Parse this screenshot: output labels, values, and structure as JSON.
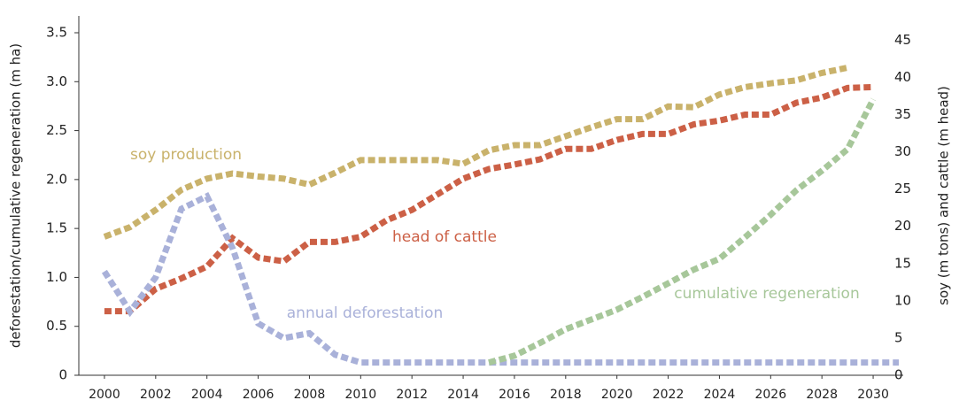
{
  "chart_data": {
    "type": "line",
    "y_label": "deforestation/cumulative regeneration (m ha)",
    "y2_label": "soy  (m tons) and cattle (m head)",
    "x": [
      2000,
      2001,
      2002,
      2003,
      2004,
      2005,
      2006,
      2007,
      2008,
      2009,
      2010,
      2011,
      2012,
      2013,
      2014,
      2015,
      2016,
      2017,
      2018,
      2019,
      2020,
      2021,
      2022,
      2023,
      2024,
      2025,
      2026,
      2027,
      2028,
      2029,
      2030,
      2031
    ],
    "xlim": [
      1999,
      2031
    ],
    "xticks": [
      2000,
      2002,
      2004,
      2006,
      2008,
      2010,
      2012,
      2014,
      2016,
      2018,
      2020,
      2022,
      2024,
      2026,
      2028,
      2030
    ],
    "ylim": [
      0,
      3.5
    ],
    "yticks": [
      0,
      0.5,
      {
        "value": 1,
        "label": "1.0"
      },
      1.5,
      {
        "value": 2,
        "label": "2.0"
      },
      2.5,
      {
        "value": 3,
        "label": "3.0"
      },
      3.5
    ],
    "y2lim": [
      0,
      46
    ],
    "y2ticks": [
      0,
      5,
      10,
      15,
      20,
      25,
      30,
      35,
      40,
      45
    ],
    "series": [
      {
        "name": "soy production",
        "color": "#c9b26b",
        "axis": "y2",
        "values": [
          18.6,
          19.9,
          22.2,
          24.9,
          26.4,
          27.1,
          26.7,
          26.4,
          25.6,
          27.2,
          28.9,
          28.9,
          28.9,
          28.9,
          28.4,
          30.2,
          30.9,
          30.9,
          32.1,
          33.3,
          34.4,
          34.4,
          36.1,
          36.0,
          37.7,
          38.7,
          39.2,
          39.6,
          40.6,
          41.3,
          null,
          null
        ]
      },
      {
        "name": "head of cattle",
        "color": "#cc6046",
        "axis": "y2",
        "values": [
          8.6,
          8.6,
          11.6,
          13.0,
          14.6,
          18.4,
          15.8,
          15.3,
          17.9,
          17.9,
          18.6,
          20.8,
          22.2,
          24.3,
          26.4,
          27.7,
          28.3,
          29.0,
          30.4,
          30.4,
          31.6,
          32.4,
          32.4,
          33.7,
          34.2,
          35.0,
          35.0,
          36.6,
          37.3,
          38.6,
          38.7,
          null
        ]
      },
      {
        "name": "annual deforestation",
        "color": "#a9b1d9",
        "values": [
          1.06,
          0.65,
          1.0,
          1.7,
          1.83,
          1.3,
          0.53,
          0.38,
          0.43,
          0.21,
          0.13,
          0.13,
          0.13,
          0.13,
          0.13,
          0.13,
          0.13,
          0.13,
          0.13,
          0.13,
          0.13,
          0.13,
          0.13,
          0.13,
          0.13,
          0.13,
          0.13,
          0.13,
          0.13,
          0.13,
          0.13,
          0.13
        ]
      },
      {
        "name": "cumulative regeneration",
        "color": "#a7c79a",
        "values": [
          null,
          null,
          null,
          null,
          null,
          null,
          null,
          null,
          null,
          null,
          null,
          null,
          null,
          null,
          null,
          0.13,
          0.2,
          0.33,
          0.47,
          0.57,
          0.67,
          0.8,
          0.94,
          1.08,
          1.19,
          1.41,
          1.64,
          1.89,
          2.09,
          2.31,
          2.82,
          null
        ]
      }
    ]
  }
}
